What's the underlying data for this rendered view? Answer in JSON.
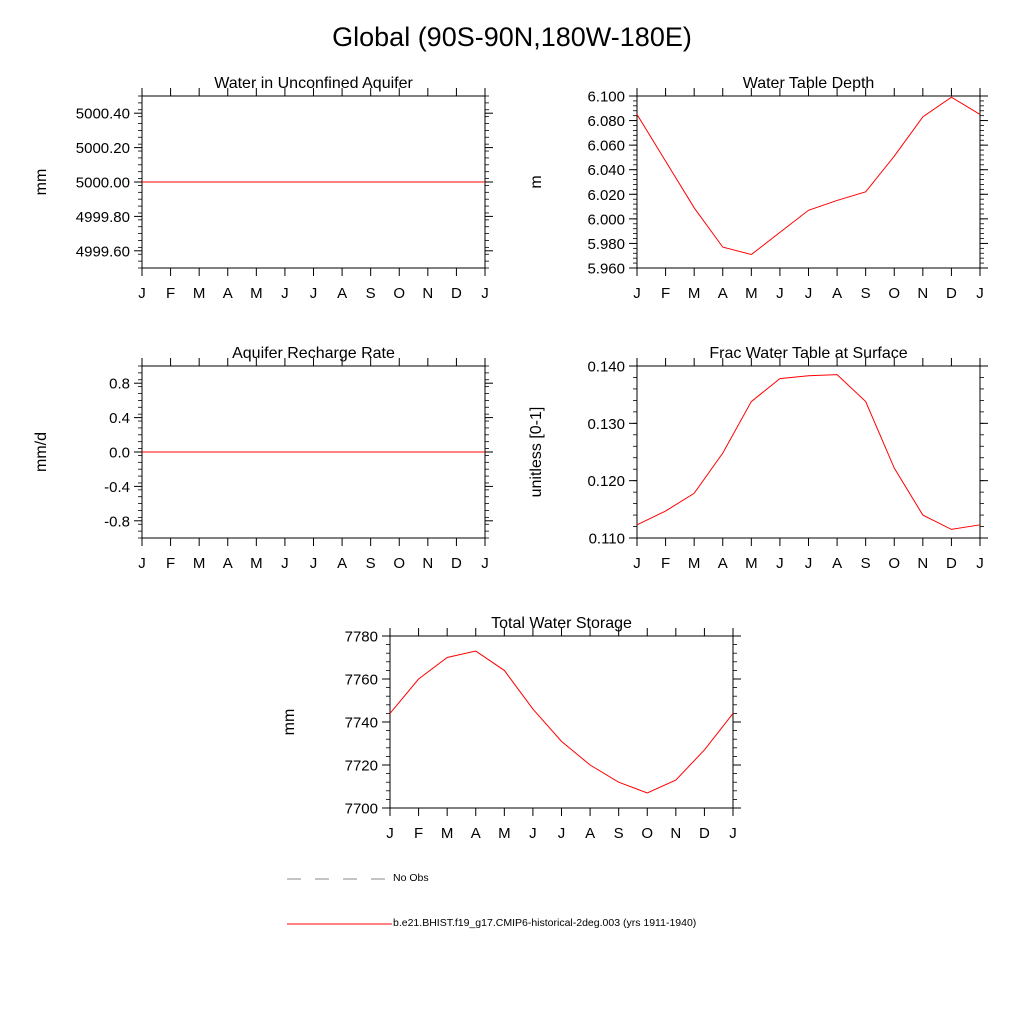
{
  "title": "Global (90S-90N,180W-180E)",
  "months": [
    "J",
    "F",
    "M",
    "A",
    "M",
    "J",
    "J",
    "A",
    "S",
    "O",
    "N",
    "D",
    "J"
  ],
  "colors": {
    "series": "#ff0000",
    "obs": "#888888",
    "axis": "#000000"
  },
  "legend": {
    "obs_label": "No Obs",
    "series_label": "b.e21.BHIST.f19_g17.CMIP6-historical-2deg.003 (yrs 1911-1940)"
  },
  "chart_data": [
    {
      "type": "line",
      "title": "Water in Unconfined Aquifer",
      "ylabel": "mm",
      "ylim": [
        4999.5,
        5000.5
      ],
      "yticks": [
        4999.6,
        4999.8,
        5000.0,
        5000.2,
        5000.4
      ],
      "ytick_labels": [
        "4999.60",
        "4999.80",
        "5000.00",
        "5000.20",
        "5000.40"
      ],
      "categories": [
        "J",
        "F",
        "M",
        "A",
        "M",
        "J",
        "J",
        "A",
        "S",
        "O",
        "N",
        "D",
        "J"
      ],
      "series": [
        {
          "values": [
            5000,
            5000,
            5000,
            5000,
            5000,
            5000,
            5000,
            5000,
            5000,
            5000,
            5000,
            5000,
            5000
          ]
        }
      ]
    },
    {
      "type": "line",
      "title": "Water Table Depth",
      "ylabel": "m",
      "ylim": [
        5.96,
        6.1
      ],
      "yticks": [
        5.96,
        5.98,
        6.0,
        6.02,
        6.04,
        6.06,
        6.08,
        6.1
      ],
      "ytick_labels": [
        "5.960",
        "5.980",
        "6.000",
        "6.020",
        "6.040",
        "6.060",
        "6.080",
        "6.100"
      ],
      "categories": [
        "J",
        "F",
        "M",
        "A",
        "M",
        "J",
        "J",
        "A",
        "S",
        "O",
        "N",
        "D",
        "J"
      ],
      "series": [
        {
          "values": [
            6.085,
            6.047,
            6.009,
            5.977,
            5.971,
            5.989,
            6.007,
            6.015,
            6.022,
            6.051,
            6.083,
            6.099,
            6.085
          ]
        }
      ]
    },
    {
      "type": "line",
      "title": "Aquifer Recharge Rate",
      "ylabel": "mm/d",
      "ylim": [
        -1.0,
        1.0
      ],
      "yticks": [
        -0.8,
        -0.4,
        0.0,
        0.4,
        0.8
      ],
      "ytick_labels": [
        "-0.8",
        "-0.4",
        "0.0",
        "0.4",
        "0.8"
      ],
      "categories": [
        "J",
        "F",
        "M",
        "A",
        "M",
        "J",
        "J",
        "A",
        "S",
        "O",
        "N",
        "D",
        "J"
      ],
      "series": [
        {
          "values": [
            0,
            0,
            0,
            0,
            0,
            0,
            0,
            0,
            0,
            0,
            0,
            0,
            0
          ]
        }
      ]
    },
    {
      "type": "line",
      "title": "Frac Water Table at Surface",
      "ylabel": "unitless [0-1]",
      "ylim": [
        0.11,
        0.14
      ],
      "yticks": [
        0.11,
        0.12,
        0.13,
        0.14
      ],
      "ytick_labels": [
        "0.110",
        "0.120",
        "0.130",
        "0.140"
      ],
      "categories": [
        "J",
        "F",
        "M",
        "A",
        "M",
        "J",
        "J",
        "A",
        "S",
        "O",
        "N",
        "D",
        "J"
      ],
      "series": [
        {
          "values": [
            0.1123,
            0.1147,
            0.1178,
            0.1248,
            0.1338,
            0.1378,
            0.1383,
            0.1385,
            0.1338,
            0.1222,
            0.114,
            0.1115,
            0.1123
          ]
        }
      ]
    },
    {
      "type": "line",
      "title": "Total Water Storage",
      "ylabel": "mm",
      "ylim": [
        7700,
        7780
      ],
      "yticks": [
        7700,
        7720,
        7740,
        7760,
        7780
      ],
      "ytick_labels": [
        "7700",
        "7720",
        "7740",
        "7760",
        "7780"
      ],
      "categories": [
        "J",
        "F",
        "M",
        "A",
        "M",
        "J",
        "J",
        "A",
        "S",
        "O",
        "N",
        "D",
        "J"
      ],
      "series": [
        {
          "values": [
            7744,
            7760,
            7770,
            7773,
            7764,
            7746,
            7731,
            7720,
            7712,
            7707,
            7713,
            7727,
            7744
          ]
        }
      ]
    }
  ]
}
